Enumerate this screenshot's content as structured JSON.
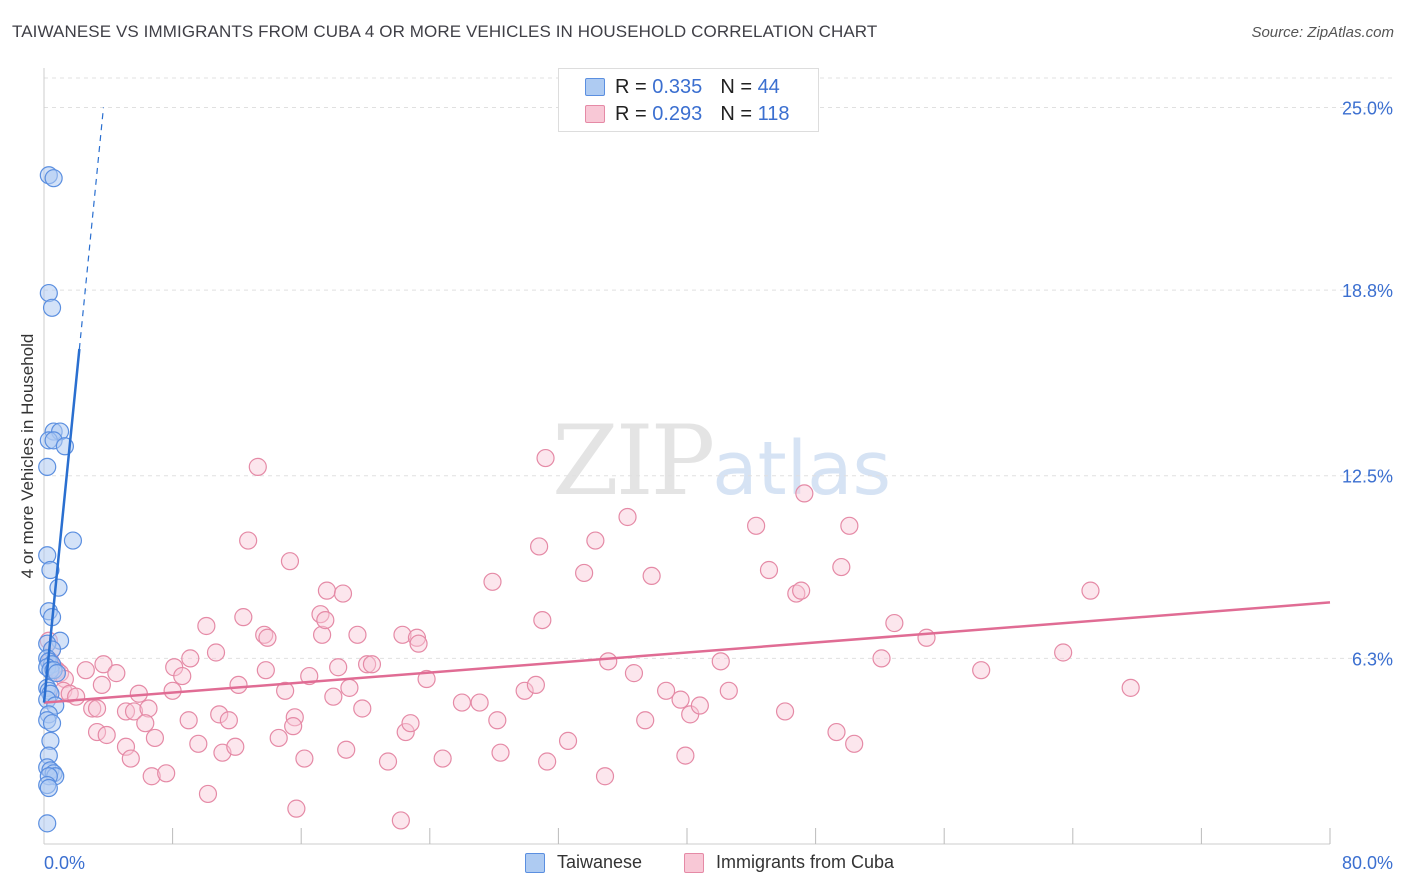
{
  "title": "TAIWANESE VS IMMIGRANTS FROM CUBA 4 OR MORE VEHICLES IN HOUSEHOLD CORRELATION CHART",
  "source": "Source: ZipAtlas.com",
  "watermark": {
    "zip": "ZIP",
    "atlas": "atlas"
  },
  "legend": {
    "rows": [
      {
        "r_label": "R =",
        "r_value": "0.335",
        "n_label": "N =",
        "n_value": "44"
      },
      {
        "r_label": "R =",
        "r_value": "0.293",
        "n_label": "N =",
        "n_value": "118"
      }
    ]
  },
  "colors": {
    "taiwanese_fill": "#aecbf2",
    "taiwanese_stroke": "#5b8fe0",
    "taiwanese_line": "#2a6fd0",
    "cuba_fill": "#f8c8d6",
    "cuba_stroke": "#e58aa6",
    "cuba_line": "#e06c94",
    "axis_label": "#3b6fd0",
    "grid": "#e0e0e0"
  },
  "chart_data": {
    "type": "scatter",
    "title": "TAIWANESE VS IMMIGRANTS FROM CUBA 4 OR MORE VEHICLES IN HOUSEHOLD CORRELATION CHART",
    "xlabel": "",
    "ylabel": "4 or more Vehicles in Household",
    "xlim": [
      0,
      80
    ],
    "ylim": [
      0,
      26
    ],
    "x_tick_labels": [
      "0.0%",
      "80.0%"
    ],
    "y_ticks": [
      6.3,
      12.5,
      18.8,
      25.0
    ],
    "y_tick_labels": [
      "6.3%",
      "12.5%",
      "18.8%",
      "25.0%"
    ],
    "grid": true,
    "series": [
      {
        "name": "Taiwanese",
        "r": 0.335,
        "n": 44,
        "trend": {
          "x0": 0,
          "y0": 4.8,
          "x1": 2.2,
          "y1": 16.8,
          "dash_to_x": 3.7,
          "dash_to_y": 25.0
        },
        "points": [
          [
            0.3,
            22.7
          ],
          [
            0.6,
            22.6
          ],
          [
            0.3,
            18.7
          ],
          [
            0.5,
            18.2
          ],
          [
            0.6,
            14.0
          ],
          [
            1.0,
            14.0
          ],
          [
            0.3,
            13.7
          ],
          [
            0.6,
            13.7
          ],
          [
            1.3,
            13.5
          ],
          [
            0.2,
            12.8
          ],
          [
            1.8,
            10.3
          ],
          [
            0.2,
            9.8
          ],
          [
            0.4,
            9.3
          ],
          [
            0.9,
            8.7
          ],
          [
            0.3,
            7.9
          ],
          [
            0.5,
            7.7
          ],
          [
            1.0,
            6.9
          ],
          [
            0.2,
            6.8
          ],
          [
            0.5,
            6.6
          ],
          [
            0.2,
            6.3
          ],
          [
            0.3,
            6.2
          ],
          [
            0.5,
            6.1
          ],
          [
            0.2,
            6.0
          ],
          [
            0.4,
            5.9
          ],
          [
            0.6,
            5.9
          ],
          [
            0.8,
            5.8
          ],
          [
            0.2,
            5.3
          ],
          [
            0.3,
            5.2
          ],
          [
            0.4,
            5.1
          ],
          [
            0.2,
            4.9
          ],
          [
            0.7,
            4.7
          ],
          [
            0.3,
            4.4
          ],
          [
            0.2,
            4.2
          ],
          [
            0.5,
            4.1
          ],
          [
            0.4,
            3.5
          ],
          [
            0.3,
            3.0
          ],
          [
            0.2,
            2.6
          ],
          [
            0.4,
            2.5
          ],
          [
            0.6,
            2.4
          ],
          [
            0.7,
            2.3
          ],
          [
            0.3,
            2.3
          ],
          [
            0.2,
            2.0
          ],
          [
            0.3,
            1.9
          ],
          [
            0.2,
            0.7
          ]
        ]
      },
      {
        "name": "Immigrants from Cuba",
        "r": 0.293,
        "n": 118,
        "trend": {
          "x0": 0,
          "y0": 4.8,
          "x1": 80,
          "y1": 8.2
        },
        "points": [
          [
            0.3,
            6.9
          ],
          [
            0.5,
            6.6
          ],
          [
            0.4,
            6.2
          ],
          [
            0.6,
            6.0
          ],
          [
            0.8,
            5.9
          ],
          [
            1.0,
            5.8
          ],
          [
            1.3,
            5.6
          ],
          [
            1.2,
            5.2
          ],
          [
            1.6,
            5.1
          ],
          [
            2.0,
            5.0
          ],
          [
            2.6,
            5.9
          ],
          [
            3.7,
            6.1
          ],
          [
            4.5,
            5.8
          ],
          [
            3.6,
            5.4
          ],
          [
            3.0,
            4.6
          ],
          [
            3.3,
            4.6
          ],
          [
            3.3,
            3.8
          ],
          [
            3.9,
            3.7
          ],
          [
            5.1,
            3.3
          ],
          [
            5.4,
            2.9
          ],
          [
            5.1,
            4.5
          ],
          [
            5.6,
            4.5
          ],
          [
            6.5,
            4.6
          ],
          [
            5.9,
            5.1
          ],
          [
            6.3,
            4.1
          ],
          [
            6.9,
            3.6
          ],
          [
            6.7,
            2.3
          ],
          [
            7.6,
            2.4
          ],
          [
            8.0,
            5.2
          ],
          [
            8.1,
            6.0
          ],
          [
            8.6,
            5.7
          ],
          [
            9.1,
            6.3
          ],
          [
            9.0,
            4.2
          ],
          [
            9.6,
            3.4
          ],
          [
            10.1,
            7.4
          ],
          [
            10.2,
            1.7
          ],
          [
            10.7,
            6.5
          ],
          [
            10.9,
            4.4
          ],
          [
            11.1,
            3.1
          ],
          [
            11.5,
            4.2
          ],
          [
            11.9,
            3.3
          ],
          [
            12.1,
            5.4
          ],
          [
            12.4,
            7.7
          ],
          [
            12.7,
            10.3
          ],
          [
            13.3,
            12.8
          ],
          [
            13.7,
            7.1
          ],
          [
            13.9,
            7.0
          ],
          [
            13.8,
            5.9
          ],
          [
            14.6,
            3.6
          ],
          [
            15.0,
            5.2
          ],
          [
            15.3,
            9.6
          ],
          [
            15.7,
            1.2
          ],
          [
            15.6,
            4.3
          ],
          [
            16.2,
            2.9
          ],
          [
            16.5,
            5.7
          ],
          [
            17.3,
            7.1
          ],
          [
            17.2,
            7.8
          ],
          [
            17.5,
            7.6
          ],
          [
            17.6,
            8.6
          ],
          [
            18.6,
            8.5
          ],
          [
            18.3,
            6.0
          ],
          [
            18.0,
            5.0
          ],
          [
            19.0,
            5.3
          ],
          [
            19.5,
            7.1
          ],
          [
            19.8,
            4.6
          ],
          [
            20.1,
            6.1
          ],
          [
            18.8,
            3.2
          ],
          [
            20.4,
            6.1
          ],
          [
            21.4,
            2.8
          ],
          [
            22.2,
            0.8
          ],
          [
            22.5,
            3.8
          ],
          [
            22.8,
            4.1
          ],
          [
            22.3,
            7.1
          ],
          [
            23.2,
            7.0
          ],
          [
            23.3,
            6.8
          ],
          [
            23.8,
            5.6
          ],
          [
            24.8,
            2.9
          ],
          [
            26.0,
            4.8
          ],
          [
            27.1,
            4.8
          ],
          [
            27.9,
            8.9
          ],
          [
            28.2,
            4.2
          ],
          [
            28.4,
            3.1
          ],
          [
            29.9,
            5.2
          ],
          [
            30.6,
            5.4
          ],
          [
            30.8,
            10.1
          ],
          [
            31.0,
            7.6
          ],
          [
            31.3,
            2.8
          ],
          [
            31.2,
            13.1
          ],
          [
            32.6,
            3.5
          ],
          [
            33.6,
            9.2
          ],
          [
            34.3,
            10.3
          ],
          [
            34.9,
            2.3
          ],
          [
            35.1,
            6.2
          ],
          [
            36.3,
            11.1
          ],
          [
            36.7,
            5.8
          ],
          [
            37.4,
            4.2
          ],
          [
            37.8,
            9.1
          ],
          [
            38.7,
            5.2
          ],
          [
            39.6,
            4.9
          ],
          [
            39.9,
            3.0
          ],
          [
            40.2,
            4.4
          ],
          [
            40.8,
            4.7
          ],
          [
            42.1,
            6.2
          ],
          [
            42.6,
            5.2
          ],
          [
            44.3,
            10.8
          ],
          [
            45.1,
            9.3
          ],
          [
            46.1,
            4.5
          ],
          [
            46.8,
            8.5
          ],
          [
            47.1,
            8.6
          ],
          [
            49.3,
            3.8
          ],
          [
            49.6,
            9.4
          ],
          [
            50.4,
            3.4
          ],
          [
            52.1,
            6.3
          ],
          [
            52.9,
            7.5
          ],
          [
            54.9,
            7.0
          ],
          [
            58.3,
            5.9
          ],
          [
            63.4,
            6.5
          ],
          [
            67.6,
            5.3
          ],
          [
            65.1,
            8.6
          ],
          [
            50.1,
            10.8
          ],
          [
            47.3,
            11.9
          ],
          [
            15.5,
            4.0
          ]
        ]
      }
    ]
  }
}
